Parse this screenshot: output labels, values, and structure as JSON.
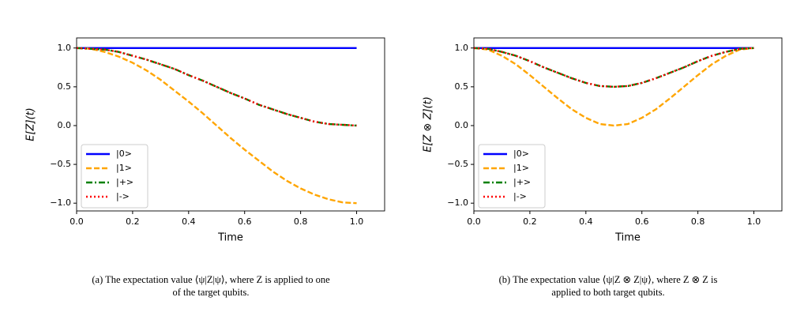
{
  "chart_data": [
    {
      "type": "line",
      "xlabel": "Time",
      "ylabel": "E[Z](t)",
      "caption_lines": [
        "(a) The expectation value ⟨ψ|Z|ψ⟩, where Z is applied to one",
        "of the target qubits."
      ],
      "x": [
        0,
        0.05,
        0.1,
        0.15,
        0.2,
        0.25,
        0.3,
        0.35,
        0.4,
        0.45,
        0.5,
        0.55,
        0.6,
        0.65,
        0.7,
        0.75,
        0.8,
        0.85,
        0.9,
        0.95,
        1
      ],
      "series": [
        {
          "name": "|0>",
          "color": "#0000ff",
          "linestyle": "solid",
          "values": [
            1,
            1,
            1,
            1,
            1,
            1,
            1,
            1,
            1,
            1,
            1,
            1,
            1,
            1,
            1,
            1,
            1,
            1,
            1,
            1,
            1
          ]
        },
        {
          "name": "|1>",
          "color": "#ffa500",
          "linestyle": "dashed",
          "values": [
            1,
            0.99,
            0.95,
            0.89,
            0.81,
            0.71,
            0.59,
            0.45,
            0.31,
            0.16,
            0,
            -0.16,
            -0.31,
            -0.45,
            -0.59,
            -0.71,
            -0.81,
            -0.89,
            -0.95,
            -0.99,
            -1
          ]
        },
        {
          "name": "|+>",
          "color": "#008000",
          "linestyle": "dashdot",
          "values": [
            1,
            0.99,
            0.98,
            0.95,
            0.9,
            0.85,
            0.79,
            0.73,
            0.65,
            0.58,
            0.5,
            0.42,
            0.35,
            0.27,
            0.21,
            0.15,
            0.1,
            0.05,
            0.02,
            0.01,
            0
          ]
        },
        {
          "name": "|->",
          "color": "#ff0000",
          "linestyle": "dotted",
          "values": [
            1,
            0.99,
            0.98,
            0.95,
            0.9,
            0.85,
            0.79,
            0.73,
            0.65,
            0.58,
            0.5,
            0.42,
            0.35,
            0.27,
            0.21,
            0.15,
            0.1,
            0.05,
            0.02,
            0.01,
            0
          ]
        }
      ],
      "xlim": [
        0,
        1.1
      ],
      "ylim": [
        -1.1,
        1.13
      ],
      "xticks": [
        {
          "value": 0,
          "label": "0.0"
        },
        0.2,
        0.4,
        0.6,
        0.8,
        {
          "value": 1,
          "label": "1.0"
        }
      ],
      "yticks": [
        {
          "value": -1,
          "label": "−1.0"
        },
        {
          "value": -0.5,
          "label": "−0.5"
        },
        {
          "value": 0,
          "label": "0.0"
        },
        0.5,
        {
          "value": 1,
          "label": "1.0"
        }
      ],
      "legend": "lower left"
    },
    {
      "type": "line",
      "xlabel": "Time",
      "ylabel": "E[Z ⊗ Z](t)",
      "caption_lines": [
        "(b) The expectation value ⟨ψ|Z ⊗ Z|ψ⟩, where Z ⊗ Z is",
        "applied to both target qubits."
      ],
      "x": [
        0,
        0.05,
        0.1,
        0.15,
        0.2,
        0.25,
        0.3,
        0.35,
        0.4,
        0.45,
        0.5,
        0.55,
        0.6,
        0.65,
        0.7,
        0.75,
        0.8,
        0.85,
        0.9,
        0.95,
        1
      ],
      "series": [
        {
          "name": "|0>",
          "color": "#0000ff",
          "linestyle": "solid",
          "values": [
            1,
            1,
            1,
            1,
            1,
            1,
            1,
            1,
            1,
            1,
            1,
            1,
            1,
            1,
            1,
            1,
            1,
            1,
            1,
            1,
            1
          ]
        },
        {
          "name": "|1>",
          "color": "#ffa500",
          "linestyle": "dashed",
          "values": [
            1,
            0.98,
            0.9,
            0.79,
            0.65,
            0.5,
            0.35,
            0.21,
            0.1,
            0.02,
            0,
            0.02,
            0.1,
            0.21,
            0.35,
            0.5,
            0.65,
            0.79,
            0.9,
            0.98,
            1
          ]
        },
        {
          "name": "|+>",
          "color": "#008000",
          "linestyle": "dashdot",
          "values": [
            1,
            0.99,
            0.95,
            0.9,
            0.83,
            0.75,
            0.68,
            0.61,
            0.55,
            0.51,
            0.5,
            0.51,
            0.55,
            0.61,
            0.68,
            0.75,
            0.83,
            0.9,
            0.95,
            0.99,
            1
          ]
        },
        {
          "name": "|->",
          "color": "#ff0000",
          "linestyle": "dotted",
          "values": [
            1,
            0.99,
            0.95,
            0.9,
            0.83,
            0.75,
            0.68,
            0.61,
            0.55,
            0.51,
            0.5,
            0.51,
            0.55,
            0.61,
            0.68,
            0.75,
            0.83,
            0.9,
            0.95,
            0.99,
            1
          ]
        }
      ],
      "xlim": [
        0,
        1.1
      ],
      "ylim": [
        -1.1,
        1.13
      ],
      "xticks": [
        {
          "value": 0,
          "label": "0.0"
        },
        0.2,
        0.4,
        0.6,
        0.8,
        {
          "value": 1,
          "label": "1.0"
        }
      ],
      "yticks": [
        {
          "value": -1,
          "label": "−1.0"
        },
        {
          "value": -0.5,
          "label": "−0.5"
        },
        {
          "value": 0,
          "label": "0.0"
        },
        0.5,
        {
          "value": 1,
          "label": "1.0"
        }
      ],
      "legend": "lower left"
    }
  ]
}
